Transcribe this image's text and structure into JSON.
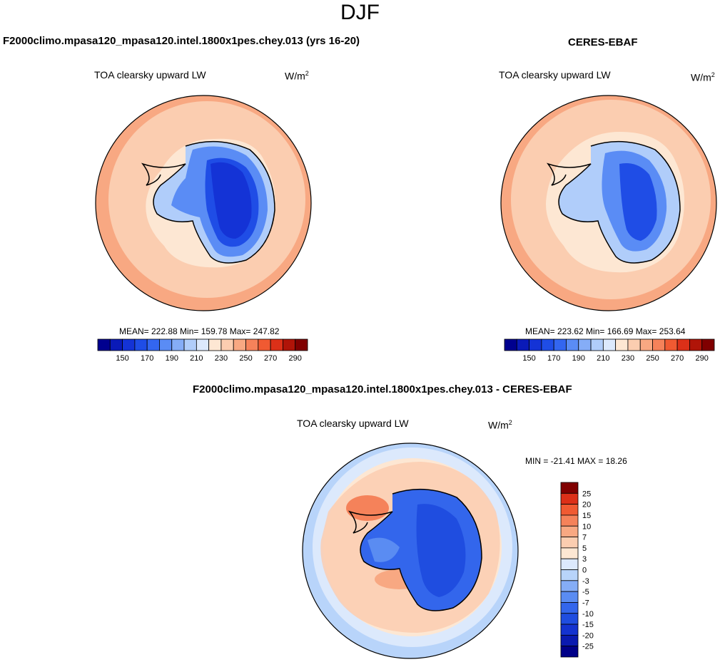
{
  "figure": {
    "season": "DJF"
  },
  "panels": [
    {
      "title": "F2000climo.mpasa120_mpasa120.intel.1800x1pes.chey.013 (yrs 16-20)",
      "variable": "TOA clearsky upward LW",
      "units": "W/m",
      "units_sup": "2",
      "stats": "MEAN= 222.88  Min= 159.78  Max= 247.82"
    },
    {
      "title": "CERES-EBAF",
      "variable": "TOA clearsky upward LW",
      "units": "W/m",
      "units_sup": "2",
      "stats": "MEAN= 223.62  Min= 166.69  Max= 253.64"
    },
    {
      "title": "F2000climo.mpasa120_mpasa120.intel.1800x1pes.chey.013 - CERES-EBAF",
      "variable": "TOA clearsky upward LW",
      "units": "W/m",
      "units_sup": "2",
      "stats": "MIN = -21.41 MAX =  18.26"
    }
  ],
  "chart_data": [
    {
      "type": "heatmap",
      "projection": "south polar stereographic",
      "title": "F2000climo.mpasa120_mpasa120.intel.1800x1pes.chey.013 (yrs 16-20)",
      "variable": "TOA clearsky upward LW",
      "units": "W/m2",
      "mean": 222.88,
      "min": 159.78,
      "max": 247.82,
      "colorbar": {
        "orientation": "horizontal",
        "levels": [
          140,
          150,
          160,
          170,
          180,
          190,
          200,
          210,
          220,
          230,
          240,
          250,
          260,
          270,
          280,
          290
        ],
        "tick_labels": [
          "150",
          "170",
          "190",
          "210",
          "230",
          "250",
          "270",
          "290"
        ],
        "colors": [
          "#00008f",
          "#0a1ab8",
          "#1433d6",
          "#1f4de6",
          "#3366f0",
          "#5a8cf5",
          "#85adf7",
          "#b0cdfa",
          "#dce9fc",
          "#fde7d3",
          "#fbcdb0",
          "#f8a882",
          "#f5825a",
          "#f05a32",
          "#dc3018",
          "#b01408",
          "#800000"
        ]
      }
    },
    {
      "type": "heatmap",
      "projection": "south polar stereographic",
      "title": "CERES-EBAF",
      "variable": "TOA clearsky upward LW",
      "units": "W/m2",
      "mean": 223.62,
      "min": 166.69,
      "max": 253.64,
      "colorbar": {
        "orientation": "horizontal",
        "levels": [
          140,
          150,
          160,
          170,
          180,
          190,
          200,
          210,
          220,
          230,
          240,
          250,
          260,
          270,
          280,
          290
        ],
        "tick_labels": [
          "150",
          "170",
          "190",
          "210",
          "230",
          "250",
          "270",
          "290"
        ],
        "colors": [
          "#00008f",
          "#0a1ab8",
          "#1433d6",
          "#1f4de6",
          "#3366f0",
          "#5a8cf5",
          "#85adf7",
          "#b0cdfa",
          "#dce9fc",
          "#fde7d3",
          "#fbcdb0",
          "#f8a882",
          "#f5825a",
          "#f05a32",
          "#dc3018",
          "#b01408",
          "#800000"
        ]
      }
    },
    {
      "type": "heatmap",
      "projection": "south polar stereographic",
      "title": "F2000climo.mpasa120_mpasa120.intel.1800x1pes.chey.013 - CERES-EBAF",
      "variable": "TOA clearsky upward LW",
      "units": "W/m2",
      "min": -21.41,
      "max": 18.26,
      "colorbar": {
        "orientation": "vertical",
        "levels": [
          -25,
          -20,
          -15,
          -10,
          -7,
          -5,
          -3,
          0,
          3,
          5,
          7,
          10,
          15,
          20,
          25
        ],
        "tick_labels": [
          "25",
          "20",
          "15",
          "10",
          "7",
          "5",
          "3",
          "0",
          "-3",
          "-5",
          "-7",
          "-10",
          "-15",
          "-20",
          "-25"
        ],
        "colors": [
          "#000088",
          "#0a1ab0",
          "#1433d0",
          "#1f4de0",
          "#3366ec",
          "#5a8cf2",
          "#85adf6",
          "#b8d4fa",
          "#dce9fc",
          "#fde7d3",
          "#fbcdb0",
          "#f8a882",
          "#f5825a",
          "#f05a32",
          "#dc3018",
          "#800000"
        ]
      }
    }
  ]
}
